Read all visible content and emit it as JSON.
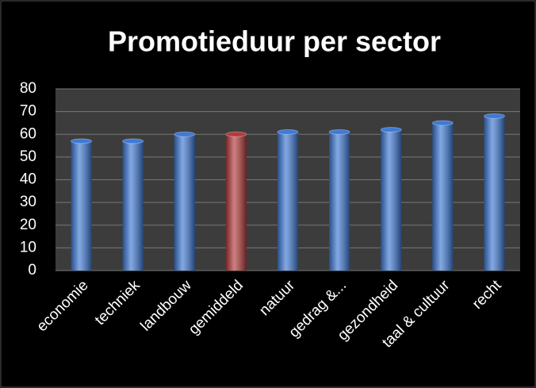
{
  "chart_data": {
    "type": "bar",
    "title": "Promotieduur per sector",
    "categories": [
      "economie",
      "techniek",
      "landbouw",
      "gemiddeld",
      "natuur",
      "gedrag &...",
      "gezondheid",
      "taal & cultuur",
      "recht"
    ],
    "values": [
      57,
      57,
      60,
      60,
      61,
      61,
      62,
      65,
      68
    ],
    "colors": [
      "#3f7ad6",
      "#3f7ad6",
      "#3f7ad6",
      "#b53a3a",
      "#3f7ad6",
      "#3f7ad6",
      "#3f7ad6",
      "#3f7ad6",
      "#3f7ad6"
    ],
    "ylim": [
      0,
      80
    ],
    "yticks": [
      0,
      10,
      20,
      30,
      40,
      50,
      60,
      70,
      80
    ],
    "grid": true
  }
}
